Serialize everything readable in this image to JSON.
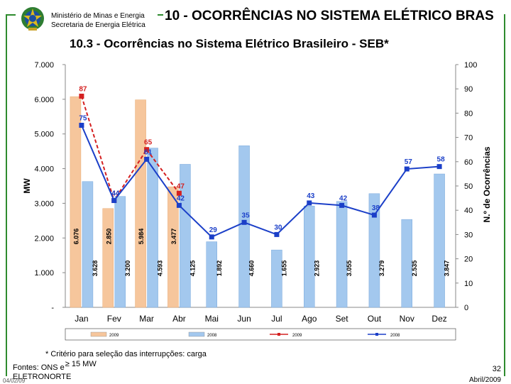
{
  "header": {
    "ministry_line1": "Ministério de Minas e Energia",
    "ministry_line2": "Secretaria de Energia Elétrica",
    "title": "10 - OCORRÊNCIAS NO SISTEMA ELÉTRICO BRAS"
  },
  "colors": {
    "bar2009": "#f6c69c",
    "bar2008": "#a3c8ee",
    "line2009": "#d42020",
    "line2008": "#1b3fc8",
    "frame": "#2e8b2e"
  },
  "chart_data": {
    "type": "bar",
    "title": "10.3 - Ocorrências no Sistema Elétrico Brasileiro - SEB*",
    "ylabel": "MW",
    "y2label": "N.º de Ocorrências",
    "ylim": [
      0,
      7000
    ],
    "y2lim": [
      0,
      100
    ],
    "yticks": [
      "-",
      "1.000",
      "2.000",
      "3.000",
      "4.000",
      "5.000",
      "6.000",
      "7.000"
    ],
    "y2ticks": [
      "0",
      "10",
      "20",
      "30",
      "40",
      "50",
      "60",
      "70",
      "80",
      "90",
      "100"
    ],
    "categories": [
      "Jan",
      "Fev",
      "Mar",
      "Abr",
      "Mai",
      "Jun",
      "Jul",
      "Ago",
      "Set",
      "Out",
      "Nov",
      "Dez"
    ],
    "bar_series": [
      {
        "name": "2009",
        "color": "#f6c69c",
        "values": [
          6076,
          2850,
          5984,
          3477,
          null,
          null,
          null,
          null,
          null,
          null,
          null,
          null
        ],
        "labels": [
          "6.076",
          "2.850",
          "5.984",
          "3.477",
          "",
          "",
          "",
          "",
          "",
          "",
          "",
          ""
        ]
      },
      {
        "name": "2008",
        "color": "#a3c8ee",
        "values": [
          3628,
          3200,
          4593,
          4125,
          1892,
          4660,
          1655,
          2923,
          3055,
          3279,
          2535,
          3847
        ],
        "labels": [
          "3.628",
          "3.200",
          "4.593",
          "4.125",
          "1.892",
          "4.660",
          "1.655",
          "2.923",
          "3.055",
          "3.279",
          "2.535",
          "3.847"
        ]
      }
    ],
    "line_series": [
      {
        "name": "2009",
        "color": "#d42020",
        "values": [
          87,
          44,
          65,
          47,
          null,
          null,
          null,
          null,
          null,
          null,
          null,
          null
        ]
      },
      {
        "name": "2008",
        "color": "#1b3fc8",
        "values": [
          75,
          44,
          61,
          42,
          29,
          35,
          30,
          43,
          42,
          38,
          57,
          58
        ]
      }
    ],
    "legend": [
      "2009",
      "2008",
      "2009",
      "2008"
    ]
  },
  "footer": {
    "note": "* Critério para seleção das interrupções: carga",
    "sources_line1": "Fontes: ONS e",
    "sources_sup": "≥ 15 MW",
    "sources_line2": "ELETRONORTE",
    "page_number": "32",
    "date": "Abril/2009",
    "small_date": "04/02/09"
  }
}
